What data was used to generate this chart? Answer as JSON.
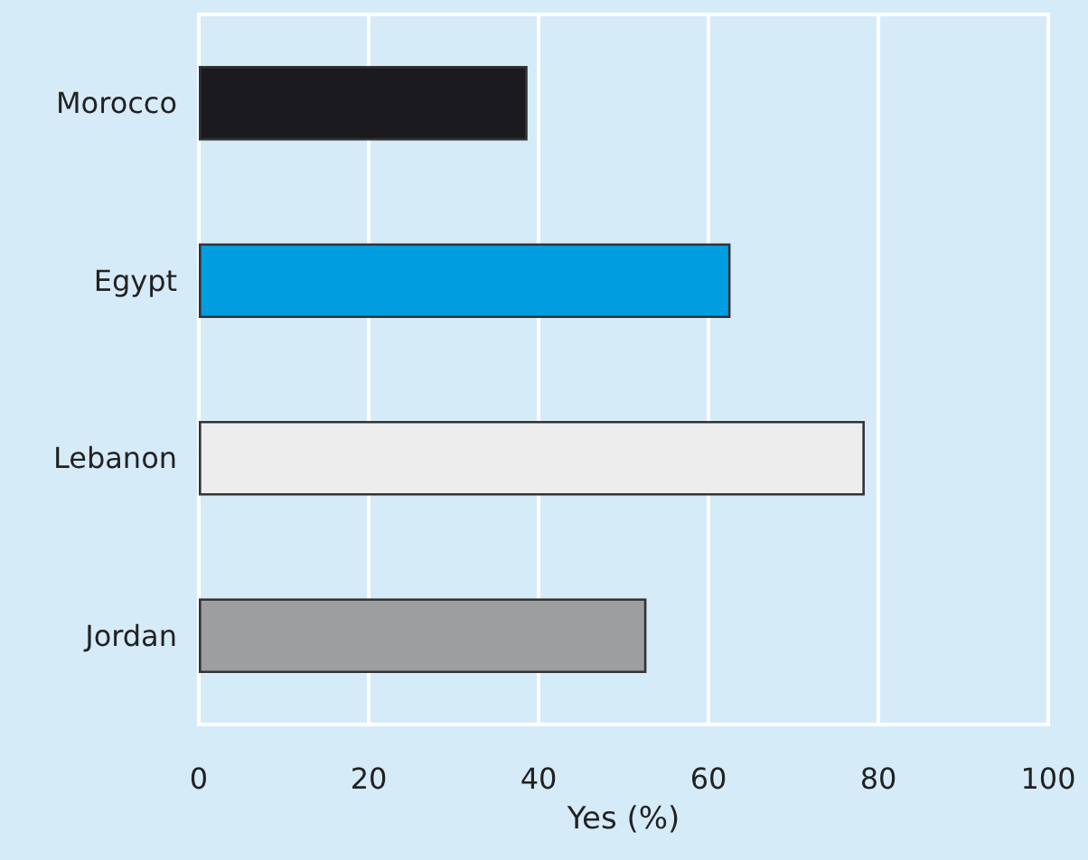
{
  "chart_data": {
    "type": "bar",
    "orientation": "horizontal",
    "xlabel": "Yes (%)",
    "categories": [
      "Morocco",
      "Egypt",
      "Lebanon",
      "Jordan"
    ],
    "values": [
      38.7,
      62.6,
      78.4,
      52.7
    ],
    "colors": [
      "#1b1a1f",
      "#009ee0",
      "#ededed",
      "#9d9ea0"
    ],
    "xlim": [
      0,
      100
    ],
    "xticks": [
      0,
      20,
      40,
      60,
      80,
      100
    ],
    "grid": "x"
  }
}
